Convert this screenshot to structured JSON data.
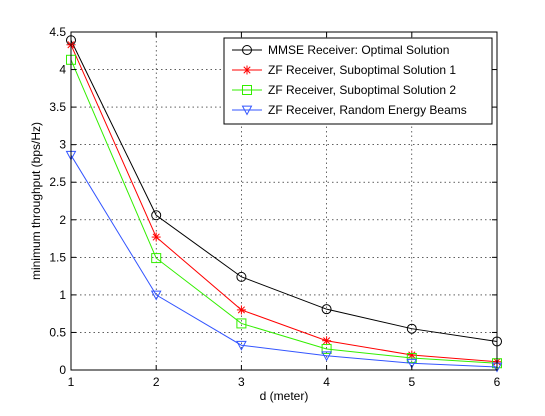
{
  "chart_data": {
    "type": "line",
    "title": "",
    "xlabel": "d (meter)",
    "ylabel": "minimum throughput (bps/Hz)",
    "xlim": [
      1,
      6
    ],
    "ylim": [
      0,
      4.5
    ],
    "x": [
      1,
      2,
      3,
      4,
      5,
      6
    ],
    "xticks": [
      "1",
      "2",
      "3",
      "4",
      "5",
      "6"
    ],
    "yticks": [
      "0",
      "0.5",
      "1",
      "1.5",
      "2",
      "2.5",
      "3",
      "3.5",
      "4",
      "4.5"
    ],
    "grid": true,
    "legend_position": "top-right",
    "series": [
      {
        "name": "MMSE Receiver: Optimal Solution",
        "color": "#000000",
        "marker": "circle",
        "values": [
          4.39,
          2.06,
          1.24,
          0.81,
          0.55,
          0.38
        ]
      },
      {
        "name": "ZF Receiver, Suboptimal Solution 1",
        "color": "#ff0000",
        "marker": "asterisk",
        "values": [
          4.33,
          1.77,
          0.8,
          0.39,
          0.2,
          0.11
        ]
      },
      {
        "name": "ZF Receiver, Suboptimal Solution 2",
        "color": "#33ee00",
        "marker": "square",
        "values": [
          4.13,
          1.49,
          0.62,
          0.28,
          0.16,
          0.09
        ]
      },
      {
        "name": "ZF Receiver, Random Energy Beams",
        "color": "#3355ff",
        "marker": "triangle-down",
        "values": [
          2.86,
          1.0,
          0.33,
          0.19,
          0.09,
          0.04
        ]
      }
    ]
  }
}
